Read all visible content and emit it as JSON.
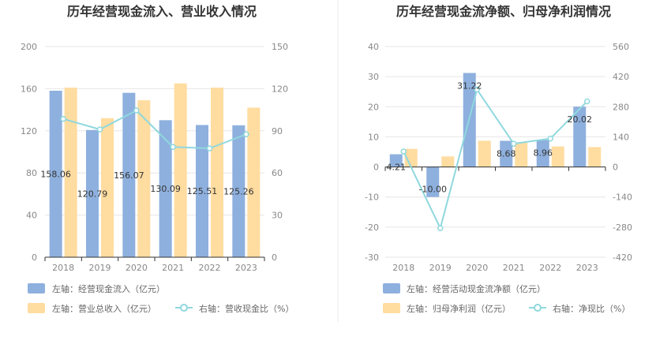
{
  "colors": {
    "bar_primary": "#8eb0de",
    "bar_secondary": "#ffdca0",
    "line": "#8fd8de",
    "grid": "#e6e6e6",
    "axis": "#333333",
    "divider": "#ebebeb"
  },
  "chart_data": [
    {
      "type": "bar",
      "title": "历年经营现金流入、营业收入情况",
      "categories": [
        "2018",
        "2019",
        "2020",
        "2021",
        "2022",
        "2023"
      ],
      "left_axis": {
        "ticks": [
          "200",
          "160",
          "120",
          "80",
          "40",
          "0"
        ],
        "ylim": [
          0,
          200
        ]
      },
      "right_axis": {
        "ticks": [
          "150",
          "120",
          "90",
          "60",
          "30",
          "0"
        ],
        "ylim": [
          0,
          150
        ]
      },
      "series": [
        {
          "name": "左轴：经营现金流入（亿元）",
          "kind": "bar",
          "axis": "left",
          "values": [
            158.06,
            120.79,
            156.07,
            130.09,
            125.51,
            125.26
          ],
          "labels": [
            "158.06",
            "120.79",
            "156.07",
            "130.09",
            "125.51",
            "125.26"
          ]
        },
        {
          "name": "左轴：营业总收入（亿元）",
          "kind": "bar",
          "axis": "left",
          "values": [
            161,
            132,
            149,
            165,
            161,
            142
          ]
        },
        {
          "name": "右轴：营收现金比（%）",
          "kind": "line",
          "axis": "right",
          "values": [
            98.5,
            91,
            104.5,
            78.5,
            77.5,
            87.5
          ]
        }
      ],
      "grid": true,
      "legend_position": "bottom-left"
    },
    {
      "type": "bar",
      "title": "历年经营现金流净额、归母净利润情况",
      "categories": [
        "2018",
        "2019",
        "2020",
        "2021",
        "2022",
        "2023"
      ],
      "left_axis": {
        "ticks": [
          "40",
          "30",
          "20",
          "10",
          "0",
          "-10",
          "-20",
          "-30"
        ],
        "ylim": [
          -30,
          40
        ]
      },
      "right_axis": {
        "ticks": [
          "560",
          "420",
          "280",
          "140",
          "0",
          "-140",
          "-280",
          "-420"
        ],
        "ylim": [
          -420,
          560
        ]
      },
      "series": [
        {
          "name": "左轴：经营活动现金流净额（亿元）",
          "kind": "bar",
          "axis": "left",
          "values": [
            4.21,
            -10.0,
            31.22,
            8.68,
            8.96,
            20.02
          ],
          "labels": [
            "4.21",
            "-10.00",
            "31.22",
            "8.68",
            "8.96",
            "20.02"
          ]
        },
        {
          "name": "左轴：归母净利润（亿元）",
          "kind": "bar",
          "axis": "left",
          "values": [
            6.0,
            3.5,
            8.7,
            8.0,
            6.8,
            6.6
          ]
        },
        {
          "name": "右轴：净现比（%）",
          "kind": "line",
          "axis": "right",
          "values": [
            72,
            -285,
            360,
            108,
            132,
            305
          ]
        }
      ],
      "grid": true,
      "legend_position": "bottom-left"
    }
  ]
}
